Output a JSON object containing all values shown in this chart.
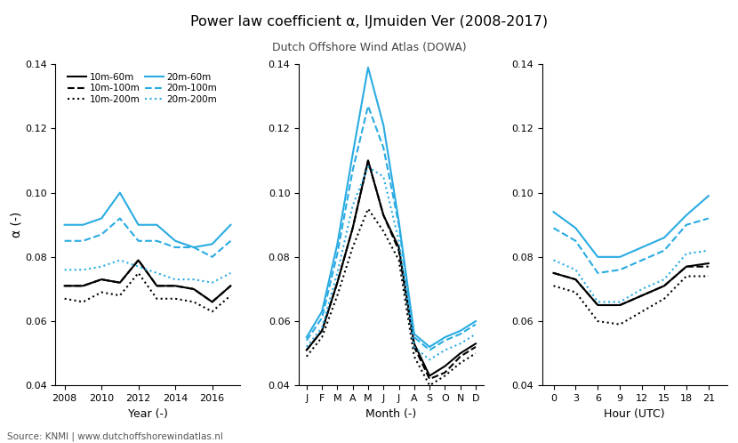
{
  "title": "Power law coefficient α, IJmuiden Ver (2008-2017)",
  "subtitle": "Dutch Offshore Wind Atlas (DOWA)",
  "ylabel": "α (-)",
  "source": "Source: KNMI | www.dutchoffshorewindatlas.nl",
  "year_x": [
    2008,
    2009,
    2010,
    2011,
    2012,
    2013,
    2014,
    2015,
    2016,
    2017
  ],
  "year_10_60": [
    0.071,
    0.071,
    0.073,
    0.072,
    0.079,
    0.071,
    0.071,
    0.07,
    0.066,
    0.071
  ],
  "year_10_100": [
    0.071,
    0.071,
    0.073,
    0.072,
    0.079,
    0.071,
    0.071,
    0.07,
    0.066,
    0.071
  ],
  "year_10_200": [
    0.067,
    0.066,
    0.069,
    0.068,
    0.075,
    0.067,
    0.067,
    0.066,
    0.063,
    0.068
  ],
  "year_20_60": [
    0.09,
    0.09,
    0.092,
    0.1,
    0.09,
    0.09,
    0.085,
    0.083,
    0.084,
    0.09
  ],
  "year_20_100": [
    0.085,
    0.085,
    0.087,
    0.092,
    0.085,
    0.085,
    0.083,
    0.083,
    0.08,
    0.085
  ],
  "year_20_200": [
    0.076,
    0.076,
    0.077,
    0.079,
    0.077,
    0.075,
    0.073,
    0.073,
    0.072,
    0.075
  ],
  "month_x": [
    1,
    2,
    3,
    4,
    5,
    6,
    7,
    8,
    9,
    10,
    11,
    12
  ],
  "month_labels": [
    "J",
    "F",
    "M",
    "A",
    "M",
    "J",
    "J",
    "A",
    "S",
    "O",
    "N",
    "D"
  ],
  "month_10_60": [
    0.051,
    0.057,
    0.072,
    0.089,
    0.11,
    0.093,
    0.083,
    0.053,
    0.043,
    0.046,
    0.05,
    0.053
  ],
  "month_10_100": [
    0.051,
    0.057,
    0.072,
    0.089,
    0.11,
    0.093,
    0.082,
    0.052,
    0.042,
    0.044,
    0.049,
    0.052
  ],
  "month_10_200": [
    0.049,
    0.055,
    0.068,
    0.083,
    0.095,
    0.088,
    0.079,
    0.049,
    0.04,
    0.043,
    0.047,
    0.05
  ],
  "month_20_60": [
    0.055,
    0.063,
    0.084,
    0.112,
    0.139,
    0.121,
    0.091,
    0.056,
    0.052,
    0.055,
    0.057,
    0.06
  ],
  "month_20_100": [
    0.054,
    0.061,
    0.081,
    0.107,
    0.127,
    0.114,
    0.09,
    0.055,
    0.051,
    0.054,
    0.056,
    0.059
  ],
  "month_20_200": [
    0.052,
    0.058,
    0.075,
    0.096,
    0.108,
    0.105,
    0.085,
    0.052,
    0.048,
    0.051,
    0.053,
    0.056
  ],
  "hour_x": [
    0,
    3,
    6,
    9,
    12,
    15,
    18,
    21
  ],
  "hour_10_60": [
    0.075,
    0.073,
    0.065,
    0.065,
    0.068,
    0.071,
    0.077,
    0.078
  ],
  "hour_10_100": [
    0.075,
    0.073,
    0.065,
    0.065,
    0.068,
    0.071,
    0.077,
    0.077
  ],
  "hour_10_200": [
    0.071,
    0.069,
    0.06,
    0.059,
    0.063,
    0.067,
    0.074,
    0.074
  ],
  "hour_20_60": [
    0.094,
    0.089,
    0.08,
    0.08,
    0.083,
    0.086,
    0.093,
    0.099
  ],
  "hour_20_100": [
    0.089,
    0.085,
    0.075,
    0.076,
    0.079,
    0.082,
    0.09,
    0.092
  ],
  "hour_20_200": [
    0.079,
    0.076,
    0.066,
    0.066,
    0.07,
    0.073,
    0.081,
    0.082
  ],
  "color_black": "#000000",
  "color_cyan": "#29ABE2",
  "ylim": [
    0.04,
    0.14
  ],
  "yticks": [
    0.04,
    0.06,
    0.08,
    0.1,
    0.12,
    0.14
  ]
}
